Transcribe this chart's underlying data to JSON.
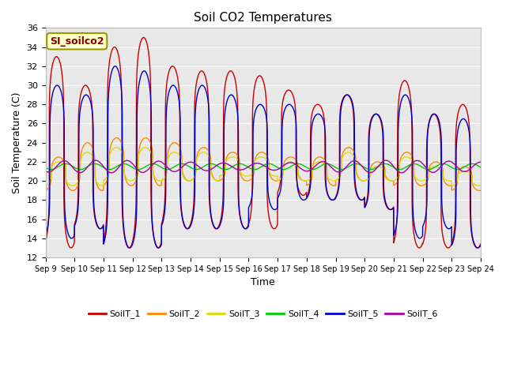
{
  "title": "Soil CO2 Temperatures",
  "xlabel": "Time",
  "ylabel": "Soil Temperature (C)",
  "ylim": [
    12,
    36
  ],
  "yticks": [
    12,
    14,
    16,
    18,
    20,
    22,
    24,
    26,
    28,
    30,
    32,
    34,
    36
  ],
  "background_color": "#e8e8e8",
  "annotation_text": "SI_soilco2",
  "annotation_bg": "#ffffcc",
  "annotation_border": "#999900",
  "series_colors": {
    "SoilT_1": "#cc0000",
    "SoilT_2": "#ff8800",
    "SoilT_3": "#dddd00",
    "SoilT_4": "#00cc00",
    "SoilT_5": "#0000cc",
    "SoilT_6": "#aa00aa"
  },
  "x_tick_labels": [
    "Sep 9",
    "Sep 10",
    "Sep 11",
    "Sep 12",
    "Sep 13",
    "Sep 14",
    "Sep 15",
    "Sep 16",
    "Sep 17",
    "Sep 18",
    "Sep 19",
    "Sep 20",
    "Sep 21",
    "Sep 22",
    "Sep 23",
    "Sep 24"
  ],
  "figsize": [
    6.4,
    4.8
  ],
  "dpi": 100
}
